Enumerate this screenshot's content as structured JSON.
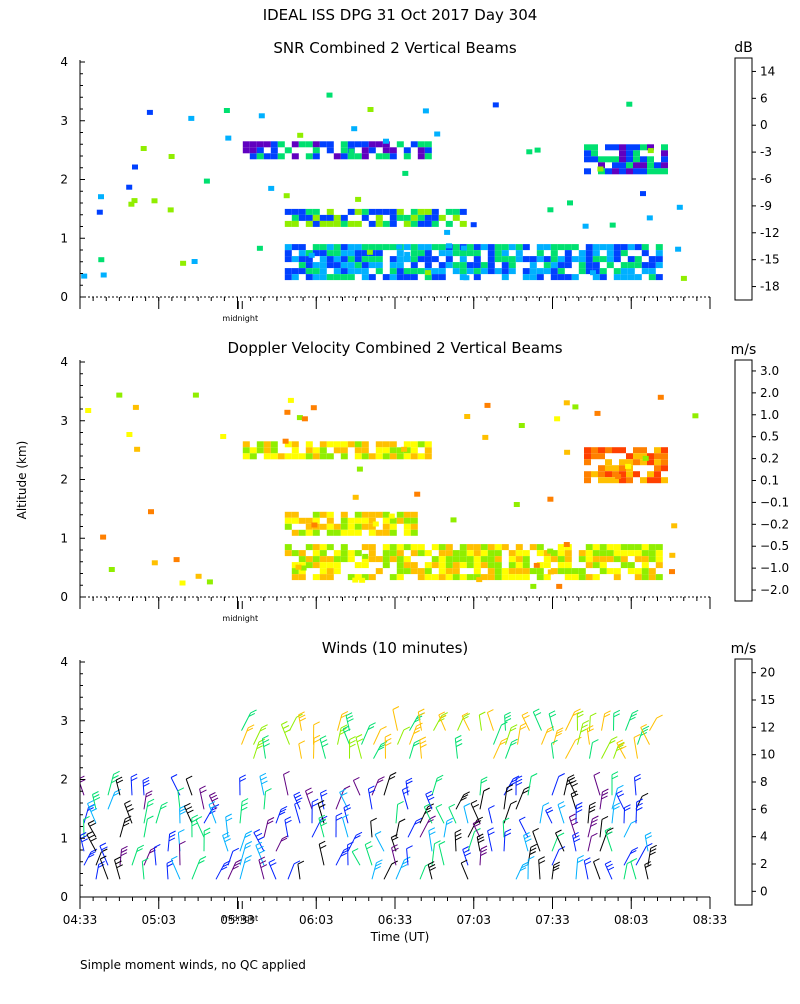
{
  "header": {
    "title": "IDEAL ISS DPG  31 Oct 2017 Day 304"
  },
  "ylabel": "Altitude (km)",
  "xlabel": "Time (UT)",
  "midnight_label": "midnight",
  "footnote": "Simple moment winds, no QC applied",
  "chart_data": [
    {
      "type": "heatmap",
      "title": "SNR Combined 2 Vertical Beams",
      "unit": "dB",
      "ylim": [
        0,
        4
      ],
      "yticks": [
        "0",
        "1",
        "2",
        "3",
        "4"
      ],
      "x_time_range": [
        "04:33",
        "08:33"
      ],
      "colorbar": {
        "labels": [
          "14",
          "6",
          "0",
          "-3",
          "-6",
          "-9",
          "-12",
          "-15",
          "-18"
        ],
        "colors": [
          "#ffc000",
          "#ff8000",
          "#ff0000",
          "#400060",
          "#6000c0",
          "#0040ff",
          "#00b0ff",
          "#00e070",
          "#90ee00"
        ]
      },
      "features": [
        {
          "t0": "05:51",
          "t1": "08:15",
          "h0": 0.3,
          "h1": 0.9,
          "mix": [
            "#00b0ff",
            "#00e070",
            "#0040ff"
          ]
        },
        {
          "t0": "05:51",
          "t1": "07:00",
          "h0": 1.2,
          "h1": 1.5,
          "mix": [
            "#00e070",
            "#90ee00",
            "#0040ff"
          ]
        },
        {
          "t0": "05:35",
          "t1": "06:45",
          "h0": 2.4,
          "h1": 2.65,
          "mix": [
            "#0040ff",
            "#6000c0",
            "#00e070"
          ]
        },
        {
          "t0": "07:45",
          "t1": "08:15",
          "h0": 2.15,
          "h1": 2.6,
          "mix": [
            "#0040ff",
            "#00e070",
            "#6000c0"
          ]
        }
      ]
    },
    {
      "type": "heatmap",
      "title": "Doppler Velocity Combined 2 Vertical Beams",
      "unit": "m/s",
      "ylim": [
        0,
        4
      ],
      "yticks": [
        "0",
        "1",
        "2",
        "3",
        "4"
      ],
      "x_time_range": [
        "04:33",
        "08:33"
      ],
      "colorbar": {
        "labels": [
          "3.0",
          "2.0",
          "1.0",
          "0.5",
          "0.2",
          "0.1",
          "−0.1",
          "−0.2",
          "−0.5",
          "−1.0",
          "−2.0"
        ],
        "colors": [
          "#300030",
          "#6000c0",
          "#0040ff",
          "#00b0ff",
          "#00e070",
          "#90ee00",
          "#ffff00",
          "#ffc000",
          "#ff8000",
          "#ff4000",
          "#ff0000"
        ]
      },
      "features": [
        {
          "t0": "05:51",
          "t1": "08:15",
          "h0": 0.3,
          "h1": 0.9,
          "mix": [
            "#ffff00",
            "#ffc000",
            "#90ee00"
          ]
        },
        {
          "t0": "05:51",
          "t1": "06:40",
          "h0": 1.1,
          "h1": 1.45,
          "mix": [
            "#ffff00",
            "#90ee00",
            "#ffc000"
          ]
        },
        {
          "t0": "05:35",
          "t1": "06:45",
          "h0": 2.4,
          "h1": 2.65,
          "mix": [
            "#ffc000",
            "#ffff00",
            "#90ee00"
          ]
        },
        {
          "t0": "07:45",
          "t1": "08:15",
          "h0": 2.0,
          "h1": 2.55,
          "mix": [
            "#ff8000",
            "#ffc000",
            "#ff4000"
          ]
        }
      ]
    },
    {
      "type": "scatter",
      "subtype": "wind-barbs",
      "title": "Winds (10 minutes)",
      "unit": "m/s",
      "ylim": [
        0,
        4
      ],
      "yticks": [
        "0",
        "1",
        "2",
        "3",
        "4"
      ],
      "xticks": [
        "04:33",
        "05:03",
        "05:33",
        "06:03",
        "06:33",
        "07:03",
        "07:33",
        "08:03",
        "08:33"
      ],
      "colorbar": {
        "labels": [
          "20",
          "15",
          "12",
          "10",
          "8",
          "6",
          "4",
          "2",
          "0"
        ],
        "colors": [
          "#ff0000",
          "#ff8000",
          "#ffc000",
          "#90ee00",
          "#00e070",
          "#00b0ff",
          "#0020ff",
          "#600080",
          "#000000"
        ]
      },
      "features": [
        {
          "t0": "05:33",
          "t1": "08:13",
          "h0": 2.3,
          "h1": 2.9,
          "mix": [
            "#90ee00",
            "#00e070",
            "#ffc000"
          ]
        },
        {
          "t0": "04:33",
          "t1": "08:13",
          "h0": 0.2,
          "h1": 1.8,
          "mix": [
            "#0020ff",
            "#00b0ff",
            "#600080",
            "#00e070",
            "#000000"
          ]
        }
      ]
    }
  ]
}
